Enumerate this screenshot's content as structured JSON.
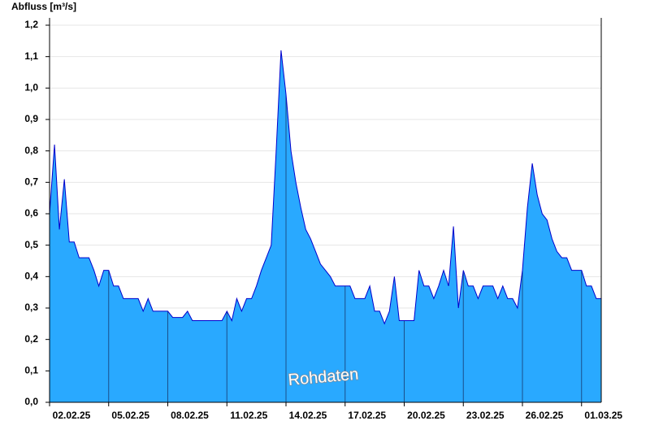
{
  "chart_data": {
    "type": "area",
    "y_label": "Abfluss [m³/s]",
    "annotation": "Rohdaten",
    "fill_color": "#29a9ff",
    "line_color": "#0000cc",
    "grid": true,
    "x": [
      0,
      0.25,
      0.5,
      0.75,
      1,
      1.25,
      1.5,
      1.75,
      2,
      2.25,
      2.5,
      2.75,
      3,
      3.25,
      3.5,
      3.75,
      4,
      4.25,
      4.5,
      4.75,
      5,
      5.25,
      5.5,
      5.75,
      6,
      6.25,
      6.5,
      6.75,
      7,
      7.25,
      7.5,
      7.75,
      8,
      8.25,
      8.5,
      8.75,
      9,
      9.25,
      9.5,
      9.75,
      10,
      10.25,
      10.5,
      10.75,
      11,
      11.25,
      11.5,
      11.75,
      12,
      12.25,
      12.5,
      12.75,
      13,
      13.25,
      13.5,
      13.75,
      14,
      14.25,
      14.5,
      14.75,
      15,
      15.25,
      15.5,
      15.75,
      16,
      16.25,
      16.5,
      16.75,
      17,
      17.25,
      17.5,
      17.75,
      18,
      18.25,
      18.5,
      18.75,
      19,
      19.25,
      19.5,
      19.75,
      20,
      20.25,
      20.5,
      20.75,
      21,
      21.25,
      21.5,
      21.75,
      22,
      22.25,
      22.5,
      22.75,
      23,
      23.25,
      23.5,
      23.75,
      24,
      24.25,
      24.5,
      24.75,
      25,
      25.25,
      25.5,
      25.75,
      26,
      26.25,
      26.5,
      26.75,
      27,
      27.25,
      27.5,
      27.75,
      28
    ],
    "values": [
      0.6,
      0.82,
      0.55,
      0.71,
      0.51,
      0.51,
      0.46,
      0.46,
      0.46,
      0.42,
      0.37,
      0.42,
      0.42,
      0.37,
      0.37,
      0.33,
      0.33,
      0.33,
      0.33,
      0.29,
      0.33,
      0.29,
      0.29,
      0.29,
      0.29,
      0.27,
      0.27,
      0.27,
      0.29,
      0.26,
      0.26,
      0.26,
      0.26,
      0.26,
      0.26,
      0.26,
      0.29,
      0.26,
      0.33,
      0.29,
      0.33,
      0.33,
      0.37,
      0.42,
      0.46,
      0.5,
      0.8,
      1.12,
      0.98,
      0.8,
      0.7,
      0.62,
      0.55,
      0.52,
      0.48,
      0.44,
      0.42,
      0.4,
      0.37,
      0.37,
      0.37,
      0.37,
      0.33,
      0.33,
      0.33,
      0.37,
      0.29,
      0.29,
      0.25,
      0.29,
      0.4,
      0.26,
      0.26,
      0.26,
      0.26,
      0.42,
      0.37,
      0.37,
      0.33,
      0.37,
      0.42,
      0.37,
      0.56,
      0.3,
      0.42,
      0.37,
      0.37,
      0.33,
      0.37,
      0.37,
      0.37,
      0.33,
      0.37,
      0.33,
      0.33,
      0.3,
      0.42,
      0.62,
      0.76,
      0.66,
      0.6,
      0.58,
      0.52,
      0.48,
      0.46,
      0.46,
      0.42,
      0.42,
      0.42,
      0.37,
      0.37,
      0.33,
      0.33
    ],
    "xlim": [
      0,
      28
    ],
    "xticks": [
      {
        "value": 0,
        "label": "02.02.25"
      },
      {
        "value": 3,
        "label": "05.02.25"
      },
      {
        "value": 6,
        "label": "08.02.25"
      },
      {
        "value": 9,
        "label": "11.02.25"
      },
      {
        "value": 12,
        "label": "14.02.25"
      },
      {
        "value": 15,
        "label": "17.02.25"
      },
      {
        "value": 18,
        "label": "20.02.25"
      },
      {
        "value": 21,
        "label": "23.02.25"
      },
      {
        "value": 24,
        "label": "26.02.25"
      },
      {
        "value": 27,
        "label": "01.03.25"
      }
    ],
    "ylim": [
      0,
      1.2
    ],
    "yticks": [
      {
        "value": 0,
        "label": "0,0"
      },
      {
        "value": 0.1,
        "label": "0,1"
      },
      {
        "value": 0.2,
        "label": "0,2"
      },
      {
        "value": 0.3,
        "label": "0,3"
      },
      {
        "value": 0.4,
        "label": "0,4"
      },
      {
        "value": 0.5,
        "label": "0,5"
      },
      {
        "value": 0.6,
        "label": "0,6"
      },
      {
        "value": 0.7,
        "label": "0,7"
      },
      {
        "value": 0.8,
        "label": "0,8"
      },
      {
        "value": 0.9,
        "label": "0,9"
      },
      {
        "value": 1.0,
        "label": "1,0"
      },
      {
        "value": 1.1,
        "label": "1,1"
      },
      {
        "value": 1.2,
        "label": "1,2"
      }
    ]
  }
}
